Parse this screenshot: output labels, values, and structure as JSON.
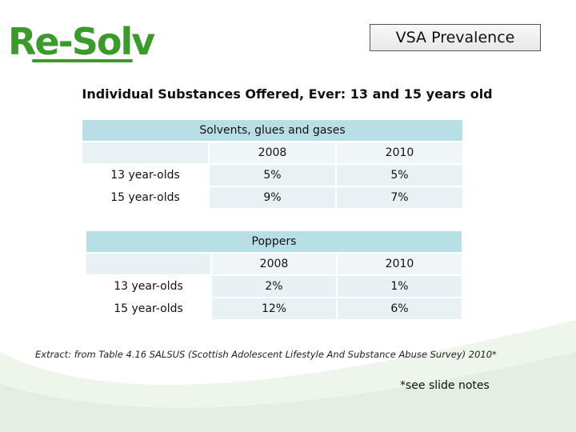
{
  "logo": {
    "text": "Re-Solv"
  },
  "slide_title": "VSA Prevalence",
  "heading": "Individual Substances Offered, Ever: 13 and 15 years old",
  "tables": [
    {
      "name": "Solvents, glues and gases",
      "columns": [
        "2008",
        "2010"
      ],
      "rows": [
        {
          "label": "13 year-olds",
          "values": [
            "5%",
            "5%"
          ]
        },
        {
          "label": "15 year-olds",
          "values": [
            "9%",
            "7%"
          ]
        }
      ]
    },
    {
      "name": "Poppers",
      "columns": [
        "2008",
        "2010"
      ],
      "rows": [
        {
          "label": "13 year-olds",
          "values": [
            "2%",
            "1%"
          ]
        },
        {
          "label": "15 year-olds",
          "values": [
            "12%",
            "6%"
          ]
        }
      ]
    }
  ],
  "caption": "Extract: from Table 4.16 SALSUS (Scottish Adolescent Lifestyle And Substance Abuse Survey) 2010*",
  "note": "*see slide notes",
  "colors": {
    "logo_green": "#3b9b2a",
    "table_header": "#b9dfe6",
    "table_cell": "#e8f2f5",
    "swoosh": "#e3efe0"
  }
}
